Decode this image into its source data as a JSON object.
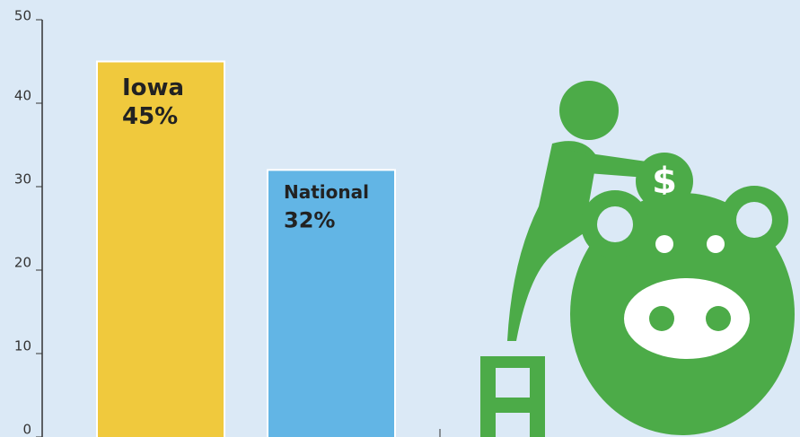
{
  "chart_data": {
    "type": "bar",
    "categories": [
      "Iowa",
      "National"
    ],
    "values": [
      45,
      32
    ],
    "value_labels": [
      "45%",
      "32%"
    ],
    "colors": [
      "#f0c93d",
      "#62b5e5"
    ],
    "ylim": [
      0,
      50
    ],
    "yticks": [
      0,
      10,
      20,
      30,
      40,
      50
    ]
  }
}
